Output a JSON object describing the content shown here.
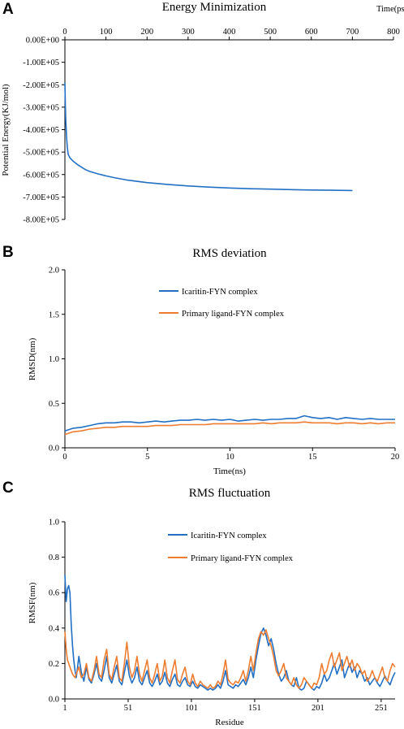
{
  "colors": {
    "blue": "#2270C4",
    "orange": "#ED7D31"
  },
  "chart_data": [
    {
      "panel": "A",
      "type": "line",
      "title": "Energy Minimization",
      "xlabel": "Time(ps)",
      "ylabel": "Potential Energy(KJ/mol)",
      "xlim": [
        0,
        800
      ],
      "ylim": [
        -800000,
        0
      ],
      "x_axis_position": "top",
      "x_ticks": [
        "0",
        "100",
        "200",
        "300",
        "400",
        "500",
        "600",
        "700",
        "800"
      ],
      "y_ticks": [
        "0.00E+00",
        "-1.00E+05",
        "-2.00E+05",
        "-3.00E+05",
        "-4.00E+05",
        "-5.00E+05",
        "-6.00E+05",
        "-7.00E+05",
        "-8.00E+05"
      ],
      "series": [
        {
          "color": "#2270C4",
          "x": [
            0,
            1,
            2,
            4,
            6,
            8,
            12,
            16,
            20,
            30,
            40,
            50,
            60,
            80,
            100,
            120,
            150,
            200,
            250,
            300,
            350,
            400,
            450,
            500,
            550,
            600,
            650,
            700
          ],
          "y": [
            -190000,
            -280000,
            -350000,
            -430000,
            -480000,
            -510000,
            -525000,
            -533000,
            -540000,
            -555000,
            -567000,
            -578000,
            -586000,
            -597000,
            -606000,
            -614000,
            -624000,
            -636000,
            -644000,
            -651000,
            -656000,
            -660000,
            -663000,
            -665000,
            -667000,
            -669000,
            -670000,
            -671000
          ]
        }
      ]
    },
    {
      "panel": "B",
      "type": "line",
      "title": "RMS deviation",
      "xlabel": "Time(ns)",
      "ylabel": "RMSD(nm)",
      "xlim": [
        0,
        20
      ],
      "ylim": [
        0,
        2.0
      ],
      "x_ticks": [
        "0",
        "5",
        "10",
        "15",
        "20"
      ],
      "y_ticks": [
        "0.0",
        "0.5",
        "1.0",
        "1.5",
        "2.0"
      ],
      "legend_position": "top-center",
      "series": [
        {
          "name": "Icaritin-FYN complex",
          "color": "#2270C4",
          "x": [
            0,
            0.5,
            1,
            1.5,
            2,
            2.5,
            3,
            3.5,
            4,
            4.5,
            5,
            5.5,
            6,
            6.5,
            7,
            7.5,
            8,
            8.5,
            9,
            9.5,
            10,
            10.5,
            11,
            11.5,
            12,
            12.5,
            13,
            13.5,
            14,
            14.5,
            15,
            15.5,
            16,
            16.5,
            17,
            17.5,
            18,
            18.5,
            19,
            19.5,
            20
          ],
          "y": [
            0.19,
            0.22,
            0.23,
            0.25,
            0.27,
            0.28,
            0.28,
            0.29,
            0.29,
            0.28,
            0.29,
            0.3,
            0.29,
            0.3,
            0.31,
            0.31,
            0.32,
            0.31,
            0.32,
            0.31,
            0.32,
            0.3,
            0.31,
            0.32,
            0.31,
            0.32,
            0.32,
            0.33,
            0.33,
            0.36,
            0.34,
            0.33,
            0.34,
            0.32,
            0.34,
            0.33,
            0.32,
            0.33,
            0.32,
            0.32,
            0.32
          ]
        },
        {
          "name": "Primary ligand-FYN complex",
          "color": "#ED7D31",
          "x": [
            0,
            0.5,
            1,
            1.5,
            2,
            2.5,
            3,
            3.5,
            4,
            4.5,
            5,
            5.5,
            6,
            6.5,
            7,
            7.5,
            8,
            8.5,
            9,
            9.5,
            10,
            10.5,
            11,
            11.5,
            12,
            12.5,
            13,
            13.5,
            14,
            14.5,
            15,
            15.5,
            16,
            16.5,
            17,
            17.5,
            18,
            18.5,
            19,
            19.5,
            20
          ],
          "y": [
            0.15,
            0.18,
            0.19,
            0.21,
            0.22,
            0.23,
            0.23,
            0.24,
            0.24,
            0.24,
            0.24,
            0.25,
            0.25,
            0.25,
            0.26,
            0.26,
            0.26,
            0.26,
            0.27,
            0.27,
            0.27,
            0.27,
            0.27,
            0.27,
            0.28,
            0.27,
            0.28,
            0.28,
            0.28,
            0.29,
            0.28,
            0.28,
            0.28,
            0.27,
            0.28,
            0.28,
            0.27,
            0.28,
            0.27,
            0.28,
            0.28
          ]
        }
      ]
    },
    {
      "panel": "C",
      "type": "line",
      "title": "RMS fluctuation",
      "xlabel": "Residue",
      "ylabel": "RMSF(nm)",
      "xlim": [
        1,
        262
      ],
      "ylim": [
        0,
        1.0
      ],
      "x_ticks": [
        "1",
        "51",
        "101",
        "151",
        "201",
        "251"
      ],
      "x_tick_values": [
        1,
        51,
        101,
        151,
        201,
        251
      ],
      "y_ticks": [
        "0.0",
        "0.2",
        "0.4",
        "0.6",
        "0.8",
        "1.0"
      ],
      "legend_position": "top-center",
      "series": [
        {
          "name": "Icaritin-FYN complex",
          "color": "#2270C4",
          "x": [
            1,
            2,
            3,
            4,
            5,
            6,
            7,
            8,
            9,
            10,
            12,
            14,
            16,
            18,
            20,
            22,
            24,
            26,
            28,
            30,
            32,
            34,
            36,
            38,
            40,
            42,
            44,
            46,
            48,
            50,
            52,
            54,
            56,
            58,
            60,
            62,
            64,
            66,
            68,
            70,
            72,
            74,
            76,
            78,
            80,
            82,
            84,
            86,
            88,
            90,
            92,
            94,
            96,
            98,
            100,
            102,
            104,
            106,
            108,
            110,
            112,
            114,
            116,
            118,
            120,
            122,
            124,
            126,
            128,
            130,
            132,
            134,
            136,
            138,
            140,
            142,
            144,
            146,
            148,
            150,
            152,
            154,
            156,
            158,
            160,
            162,
            164,
            166,
            168,
            170,
            172,
            174,
            176,
            178,
            180,
            182,
            184,
            186,
            188,
            190,
            192,
            194,
            196,
            198,
            200,
            202,
            204,
            206,
            208,
            210,
            212,
            214,
            216,
            218,
            220,
            222,
            224,
            226,
            228,
            230,
            232,
            234,
            236,
            238,
            240,
            242,
            244,
            246,
            248,
            250,
            252,
            254,
            256,
            258,
            260,
            262
          ],
          "y": [
            0.7,
            0.55,
            0.62,
            0.64,
            0.6,
            0.42,
            0.3,
            0.22,
            0.16,
            0.12,
            0.24,
            0.15,
            0.1,
            0.18,
            0.11,
            0.09,
            0.14,
            0.2,
            0.12,
            0.1,
            0.16,
            0.24,
            0.12,
            0.09,
            0.14,
            0.19,
            0.1,
            0.08,
            0.15,
            0.22,
            0.13,
            0.09,
            0.12,
            0.18,
            0.1,
            0.08,
            0.12,
            0.16,
            0.09,
            0.07,
            0.1,
            0.14,
            0.08,
            0.1,
            0.15,
            0.09,
            0.07,
            0.11,
            0.14,
            0.08,
            0.07,
            0.1,
            0.12,
            0.08,
            0.07,
            0.1,
            0.07,
            0.06,
            0.08,
            0.07,
            0.06,
            0.05,
            0.06,
            0.05,
            0.06,
            0.08,
            0.06,
            0.1,
            0.16,
            0.08,
            0.07,
            0.06,
            0.08,
            0.07,
            0.09,
            0.11,
            0.08,
            0.12,
            0.18,
            0.12,
            0.22,
            0.3,
            0.37,
            0.4,
            0.36,
            0.3,
            0.34,
            0.28,
            0.2,
            0.14,
            0.1,
            0.12,
            0.16,
            0.1,
            0.08,
            0.07,
            0.12,
            0.06,
            0.05,
            0.06,
            0.1,
            0.08,
            0.06,
            0.05,
            0.07,
            0.06,
            0.09,
            0.14,
            0.1,
            0.12,
            0.16,
            0.2,
            0.14,
            0.18,
            0.22,
            0.12,
            0.16,
            0.2,
            0.15,
            0.18,
            0.12,
            0.16,
            0.14,
            0.1,
            0.12,
            0.08,
            0.1,
            0.12,
            0.09,
            0.07,
            0.1,
            0.13,
            0.1,
            0.08,
            0.12,
            0.15
          ]
        },
        {
          "name": "Primary ligand-FYN complex",
          "color": "#ED7D31",
          "x": [
            1,
            2,
            3,
            4,
            5,
            6,
            7,
            8,
            9,
            10,
            12,
            14,
            16,
            18,
            20,
            22,
            24,
            26,
            28,
            30,
            32,
            34,
            36,
            38,
            40,
            42,
            44,
            46,
            48,
            50,
            52,
            54,
            56,
            58,
            60,
            62,
            64,
            66,
            68,
            70,
            72,
            74,
            76,
            78,
            80,
            82,
            84,
            86,
            88,
            90,
            92,
            94,
            96,
            98,
            100,
            102,
            104,
            106,
            108,
            110,
            112,
            114,
            116,
            118,
            120,
            122,
            124,
            126,
            128,
            130,
            132,
            134,
            136,
            138,
            140,
            142,
            144,
            146,
            148,
            150,
            152,
            154,
            156,
            158,
            160,
            162,
            164,
            166,
            168,
            170,
            172,
            174,
            176,
            178,
            180,
            182,
            184,
            186,
            188,
            190,
            192,
            194,
            196,
            198,
            200,
            202,
            204,
            206,
            208,
            210,
            212,
            214,
            216,
            218,
            220,
            222,
            224,
            226,
            228,
            230,
            232,
            234,
            236,
            238,
            240,
            242,
            244,
            246,
            248,
            250,
            252,
            254,
            256,
            258,
            260,
            262
          ],
          "y": [
            0.38,
            0.28,
            0.22,
            0.2,
            0.18,
            0.16,
            0.14,
            0.13,
            0.12,
            0.14,
            0.18,
            0.12,
            0.14,
            0.2,
            0.12,
            0.1,
            0.16,
            0.24,
            0.14,
            0.12,
            0.22,
            0.28,
            0.14,
            0.11,
            0.18,
            0.24,
            0.12,
            0.1,
            0.2,
            0.32,
            0.18,
            0.12,
            0.16,
            0.24,
            0.14,
            0.1,
            0.16,
            0.22,
            0.12,
            0.09,
            0.14,
            0.2,
            0.1,
            0.13,
            0.22,
            0.12,
            0.09,
            0.16,
            0.22,
            0.11,
            0.09,
            0.14,
            0.18,
            0.1,
            0.08,
            0.14,
            0.09,
            0.07,
            0.1,
            0.08,
            0.07,
            0.06,
            0.08,
            0.06,
            0.07,
            0.1,
            0.08,
            0.14,
            0.22,
            0.11,
            0.09,
            0.08,
            0.1,
            0.09,
            0.12,
            0.16,
            0.1,
            0.16,
            0.24,
            0.16,
            0.26,
            0.34,
            0.38,
            0.36,
            0.39,
            0.34,
            0.3,
            0.24,
            0.16,
            0.13,
            0.16,
            0.2,
            0.12,
            0.1,
            0.08,
            0.12,
            0.08,
            0.06,
            0.08,
            0.12,
            0.1,
            0.08,
            0.06,
            0.09,
            0.08,
            0.12,
            0.2,
            0.14,
            0.16,
            0.22,
            0.26,
            0.18,
            0.22,
            0.26,
            0.16,
            0.2,
            0.24,
            0.18,
            0.22,
            0.16,
            0.2,
            0.18,
            0.14,
            0.16,
            0.1,
            0.12,
            0.16,
            0.12,
            0.1,
            0.14,
            0.18,
            0.12,
            0.1,
            0.16,
            0.2,
            0.18
          ]
        }
      ]
    }
  ]
}
